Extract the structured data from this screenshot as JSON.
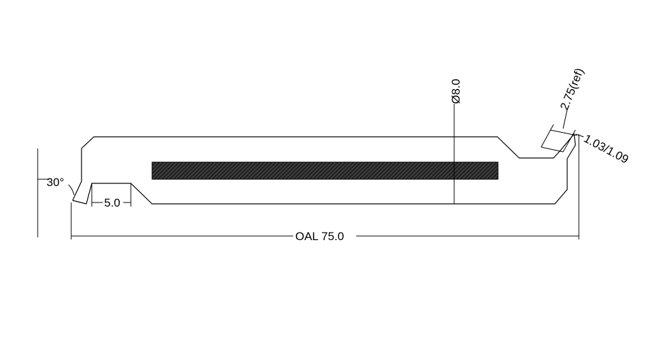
{
  "drawing": {
    "colors": {
      "line": "#000000",
      "hatch": "#000000",
      "background": "#ffffff"
    },
    "dimensions": {
      "angle": "30°",
      "groove_width": "5.0",
      "overall_length": "OAL 75.0",
      "diameter": "Ø8.0",
      "ref_length": "2.75(ref)",
      "tolerance": "1.03/1.09"
    }
  }
}
